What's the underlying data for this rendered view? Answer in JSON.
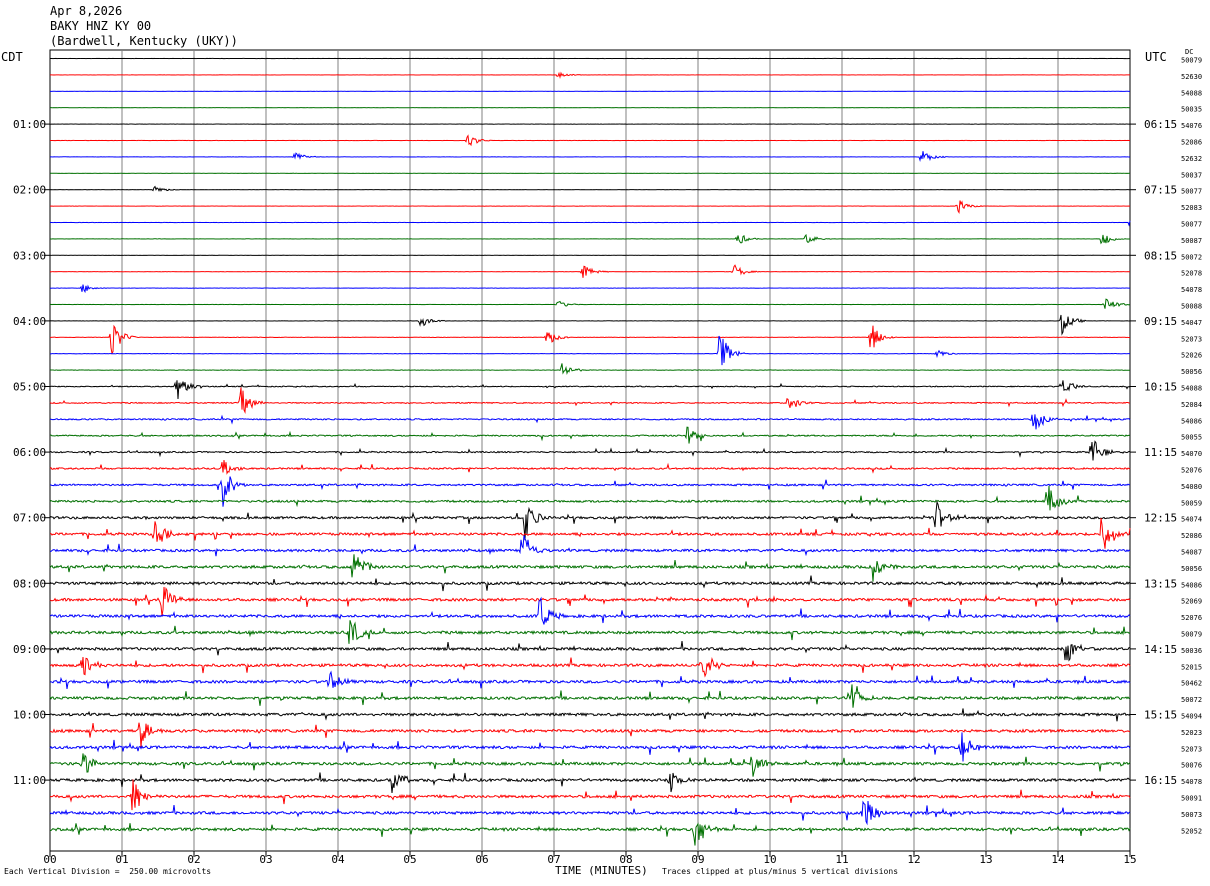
{
  "header": {
    "date": "Apr 8,2026",
    "station": "BAKY HNZ KY 00",
    "location": "(Bardwell, Kentucky (UKY))"
  },
  "corner_labels": {
    "left": "CDT",
    "right": "UTC",
    "dc": "DC"
  },
  "footer": {
    "scale_note": "Each Vertical Division =  250.00 microvolts",
    "xlabel": "TIME (MINUTES)",
    "clip_note": "Traces clipped at plus/minus 5 vertical divisions"
  },
  "colors": {
    "cycle": [
      "#000000",
      "#ff0000",
      "#0000ff",
      "#007000"
    ],
    "grid": "#808080"
  },
  "chart_data": {
    "type": "line",
    "title": "BAKY HNZ KY 00",
    "xlabel": "TIME (MINUTES)",
    "xlim": [
      0,
      15
    ],
    "x_ticks": [
      "00",
      "01",
      "02",
      "03",
      "04",
      "05",
      "06",
      "07",
      "08",
      "09",
      "10",
      "11",
      "12",
      "13",
      "14",
      "15"
    ],
    "left_time_labels": [
      "01:00",
      "02:00",
      "03:00",
      "04:00",
      "05:00",
      "06:00",
      "07:00",
      "08:00",
      "09:00",
      "10:00",
      "11:00"
    ],
    "right_time_labels": [
      "06:15",
      "07:15",
      "08:15",
      "09:15",
      "10:15",
      "11:15",
      "12:15",
      "13:15",
      "14:15",
      "15:15",
      "16:15"
    ],
    "trace_dc_offsets": [
      "50079",
      "52630",
      "54088",
      "50035",
      "54076",
      "52086",
      "52632",
      "50037",
      "50077",
      "52083",
      "50077",
      "50087",
      "50072",
      "52078",
      "54078",
      "50088",
      "54047",
      "52073",
      "52026",
      "50056",
      "54088",
      "52084",
      "54086",
      "50055",
      "54070",
      "52076",
      "54080",
      "50059",
      "54074",
      "52086",
      "54087",
      "50056",
      "54086",
      "52069",
      "52076",
      "50079",
      "50036",
      "52015",
      "50462",
      "50072",
      "54094",
      "52023",
      "52073",
      "50076",
      "54078",
      "50091",
      "50073",
      "52052"
    ],
    "amplitude_per_trace": [
      0.04,
      0.04,
      0.04,
      0.05,
      0.05,
      0.05,
      0.05,
      0.05,
      0.05,
      0.05,
      0.05,
      0.05,
      0.05,
      0.06,
      0.06,
      0.06,
      0.07,
      0.08,
      0.08,
      0.1,
      0.2,
      0.25,
      0.3,
      0.3,
      0.3,
      0.35,
      0.4,
      0.45,
      0.5,
      0.55,
      0.55,
      0.6,
      0.6,
      0.6,
      0.6,
      0.6,
      0.6,
      0.6,
      0.6,
      0.6,
      0.6,
      0.6,
      0.6,
      0.6,
      0.6,
      0.6,
      0.6,
      0.6
    ],
    "events": [
      {
        "trace": 1,
        "minute": 7.05,
        "amp": 4
      },
      {
        "trace": 5,
        "minute": 5.8,
        "amp": 8
      },
      {
        "trace": 6,
        "minute": 3.4,
        "amp": 6
      },
      {
        "trace": 6,
        "minute": 12.1,
        "amp": 8
      },
      {
        "trace": 8,
        "minute": 1.45,
        "amp": 4
      },
      {
        "trace": 9,
        "minute": 12.6,
        "amp": 8
      },
      {
        "trace": 10,
        "minute": 15,
        "amp": 8
      },
      {
        "trace": 11,
        "minute": 9.55,
        "amp": 7
      },
      {
        "trace": 11,
        "minute": 10.5,
        "amp": 6
      },
      {
        "trace": 11,
        "minute": 14.6,
        "amp": 8
      },
      {
        "trace": 13,
        "minute": 7.4,
        "amp": 8
      },
      {
        "trace": 13,
        "minute": 9.5,
        "amp": 8
      },
      {
        "trace": 14,
        "minute": 0.45,
        "amp": 5
      },
      {
        "trace": 15,
        "minute": 7.05,
        "amp": 5
      },
      {
        "trace": 15,
        "minute": 14.65,
        "amp": 10
      },
      {
        "trace": 16,
        "minute": 5.15,
        "amp": 7
      },
      {
        "trace": 16,
        "minute": 14.05,
        "amp": 14
      },
      {
        "trace": 17,
        "minute": 0.85,
        "amp": 20
      },
      {
        "trace": 17,
        "minute": 6.9,
        "amp": 9
      },
      {
        "trace": 17,
        "minute": 11.4,
        "amp": 16
      },
      {
        "trace": 18,
        "minute": 9.3,
        "amp": 25
      },
      {
        "trace": 18,
        "minute": 12.3,
        "amp": 6
      },
      {
        "trace": 19,
        "minute": 7.1,
        "amp": 10
      },
      {
        "trace": 20,
        "minute": 1.75,
        "amp": 18
      },
      {
        "trace": 20,
        "minute": 14.05,
        "amp": 12
      },
      {
        "trace": 21,
        "minute": 2.65,
        "amp": 16
      },
      {
        "trace": 21,
        "minute": 10.25,
        "amp": 12
      },
      {
        "trace": 22,
        "minute": 13.65,
        "amp": 16
      },
      {
        "trace": 23,
        "minute": 8.85,
        "amp": 12
      },
      {
        "trace": 24,
        "minute": 14.45,
        "amp": 20
      },
      {
        "trace": 25,
        "minute": 2.4,
        "amp": 10
      },
      {
        "trace": 26,
        "minute": 2.4,
        "amp": 22
      },
      {
        "trace": 27,
        "minute": 13.85,
        "amp": 20
      },
      {
        "trace": 28,
        "minute": 6.6,
        "amp": 26
      },
      {
        "trace": 28,
        "minute": 12.3,
        "amp": 20
      },
      {
        "trace": 29,
        "minute": 1.45,
        "amp": 18
      },
      {
        "trace": 29,
        "minute": 14.6,
        "amp": 24
      },
      {
        "trace": 30,
        "minute": 6.55,
        "amp": 24
      },
      {
        "trace": 31,
        "minute": 4.2,
        "amp": 22
      },
      {
        "trace": 31,
        "minute": 11.4,
        "amp": 22
      },
      {
        "trace": 33,
        "minute": 1.55,
        "amp": 20
      },
      {
        "trace": 34,
        "minute": 6.8,
        "amp": 22
      },
      {
        "trace": 35,
        "minute": 4.15,
        "amp": 20
      },
      {
        "trace": 36,
        "minute": 14.1,
        "amp": 20
      },
      {
        "trace": 37,
        "minute": 0.45,
        "amp": 18
      },
      {
        "trace": 37,
        "minute": 9.05,
        "amp": 20
      },
      {
        "trace": 38,
        "minute": 3.9,
        "amp": 18
      },
      {
        "trace": 39,
        "minute": 11.1,
        "amp": 22
      },
      {
        "trace": 41,
        "minute": 1.25,
        "amp": 20
      },
      {
        "trace": 42,
        "minute": 12.65,
        "amp": 20
      },
      {
        "trace": 43,
        "minute": 0.45,
        "amp": 16
      },
      {
        "trace": 43,
        "minute": 9.75,
        "amp": 18
      },
      {
        "trace": 44,
        "minute": 4.75,
        "amp": 18
      },
      {
        "trace": 44,
        "minute": 8.6,
        "amp": 14
      },
      {
        "trace": 45,
        "minute": 1.15,
        "amp": 22
      },
      {
        "trace": 46,
        "minute": 11.3,
        "amp": 24
      },
      {
        "trace": 47,
        "minute": 8.95,
        "amp": 20
      }
    ]
  }
}
